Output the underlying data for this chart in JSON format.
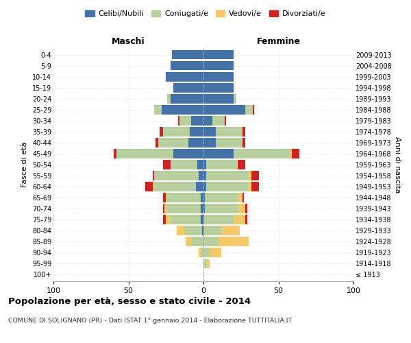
{
  "age_groups": [
    "100+",
    "95-99",
    "90-94",
    "85-89",
    "80-84",
    "75-79",
    "70-74",
    "65-69",
    "60-64",
    "55-59",
    "50-54",
    "45-49",
    "40-44",
    "35-39",
    "30-34",
    "25-29",
    "20-24",
    "15-19",
    "10-14",
    "5-9",
    "0-4"
  ],
  "birth_years": [
    "≤ 1913",
    "1914-1918",
    "1919-1923",
    "1924-1928",
    "1929-1933",
    "1934-1938",
    "1939-1943",
    "1944-1948",
    "1949-1953",
    "1954-1958",
    "1959-1963",
    "1964-1968",
    "1969-1973",
    "1974-1978",
    "1979-1983",
    "1984-1988",
    "1989-1993",
    "1994-1998",
    "1999-2003",
    "2004-2008",
    "2009-2013"
  ],
  "males": {
    "celibi": [
      0,
      0,
      0,
      0,
      1,
      2,
      2,
      2,
      5,
      3,
      4,
      20,
      10,
      9,
      8,
      28,
      22,
      20,
      25,
      22,
      21
    ],
    "coniugati": [
      0,
      0,
      2,
      8,
      12,
      20,
      22,
      22,
      28,
      30,
      18,
      38,
      20,
      18,
      8,
      5,
      2,
      0,
      0,
      0,
      0
    ],
    "vedovi": [
      0,
      0,
      1,
      4,
      5,
      3,
      2,
      1,
      1,
      0,
      0,
      0,
      0,
      0,
      0,
      0,
      0,
      0,
      0,
      0,
      0
    ],
    "divorziati": [
      0,
      0,
      0,
      0,
      0,
      2,
      1,
      2,
      5,
      1,
      5,
      2,
      2,
      2,
      1,
      0,
      0,
      0,
      0,
      0,
      0
    ]
  },
  "females": {
    "nubili": [
      0,
      0,
      0,
      0,
      0,
      0,
      1,
      1,
      2,
      2,
      2,
      20,
      8,
      8,
      6,
      28,
      20,
      20,
      20,
      20,
      20
    ],
    "coniugate": [
      0,
      2,
      4,
      10,
      12,
      20,
      22,
      22,
      28,
      28,
      20,
      38,
      18,
      18,
      8,
      5,
      2,
      0,
      0,
      0,
      0
    ],
    "vedove": [
      0,
      2,
      8,
      20,
      12,
      8,
      5,
      3,
      2,
      2,
      1,
      1,
      0,
      0,
      0,
      0,
      0,
      0,
      0,
      0,
      0
    ],
    "divorziate": [
      0,
      0,
      0,
      0,
      0,
      1,
      1,
      1,
      5,
      5,
      5,
      5,
      2,
      2,
      1,
      1,
      0,
      0,
      0,
      0,
      0
    ]
  },
  "colors": {
    "celibi": "#4472a8",
    "coniugati": "#b8cfa0",
    "vedovi": "#f5c96a",
    "divorziati": "#cc2222"
  },
  "title": "Popolazione per età, sesso e stato civile - 2014",
  "subtitle": "COMUNE DI SOLIGNANO (PR) - Dati ISTAT 1° gennaio 2014 - Elaborazione TUTTITALIA.IT",
  "xlabel_left": "Maschi",
  "xlabel_right": "Femmine",
  "ylabel_left": "Fasce di età",
  "ylabel_right": "Anni di nascita",
  "xlim": 100,
  "legend_labels": [
    "Celibi/Nubili",
    "Coniugati/e",
    "Vedovi/e",
    "Divorziati/e"
  ],
  "background_color": "#ffffff",
  "grid_color": "#cccccc"
}
